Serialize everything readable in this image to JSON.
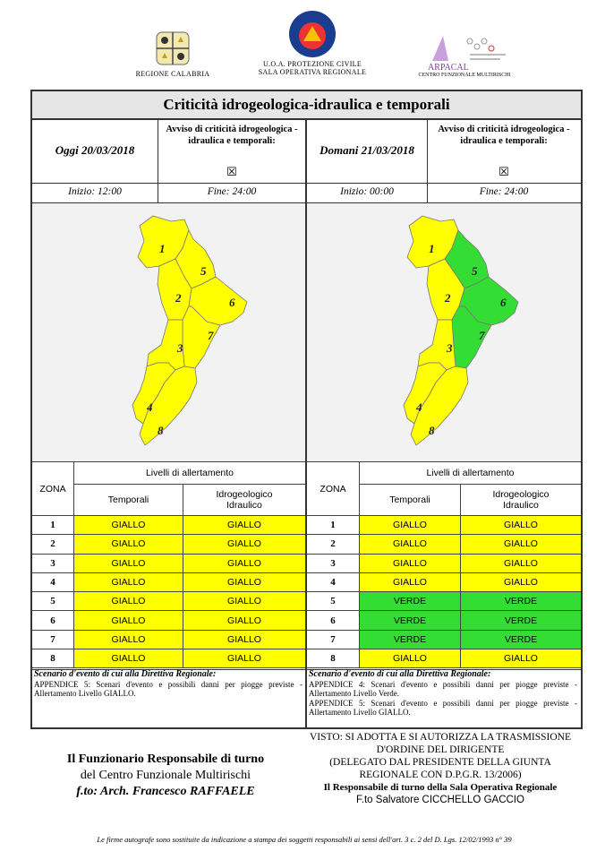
{
  "header": {
    "logos": [
      {
        "caption": "REGIONE CALABRIA",
        "icon": "regione-calabria-crest-icon"
      },
      {
        "caption_line1": "U.O.A. PROTEZIONE CIVILE",
        "caption_line2": "SALA OPERATIVA REGIONALE",
        "icon": "protezione-civile-icon"
      },
      {
        "caption": "ARPACAL",
        "subcaption": "CENTRO FUNZIONALE MULTIRISCHI",
        "icon": "arpacal-icon"
      }
    ]
  },
  "title": "Criticità idrogeologica-idraulica e temporali",
  "days": [
    {
      "date": "Oggi 20/03/2018",
      "avviso": "Avviso di criticità idrogeologica - idraulica e temporali:",
      "checkbox": "☒",
      "inizio": "Inizio: 12:00",
      "fine": "Fine: 24:00",
      "zone_colors": {
        "1": "#ffff00",
        "2": "#ffff00",
        "3": "#ffff00",
        "4": "#ffff00",
        "5": "#ffff00",
        "6": "#ffff00",
        "7": "#ffff00",
        "8": "#ffff00"
      },
      "table": {
        "zona_header": "ZONA",
        "livelli_header": "Livelli di allertamento",
        "col1": "Temporali",
        "col2": "Idrogeologico Idraulico",
        "rows": [
          {
            "zona": "1",
            "temporali": "GIALLO",
            "idro": "GIALLO"
          },
          {
            "zona": "2",
            "temporali": "GIALLO",
            "idro": "GIALLO"
          },
          {
            "zona": "3",
            "temporali": "GIALLO",
            "idro": "GIALLO"
          },
          {
            "zona": "4",
            "temporali": "GIALLO",
            "idro": "GIALLO"
          },
          {
            "zona": "5",
            "temporali": "GIALLO",
            "idro": "GIALLO"
          },
          {
            "zona": "6",
            "temporali": "GIALLO",
            "idro": "GIALLO"
          },
          {
            "zona": "7",
            "temporali": "GIALLO",
            "idro": "GIALLO"
          },
          {
            "zona": "8",
            "temporali": "GIALLO",
            "idro": "GIALLO"
          }
        ]
      },
      "scenario_title": "Scenario d'evento di cui alla Direttiva Regionale:",
      "scenario_lines": [
        "APPENDICE 5: Scenari d'evento e possibili danni per piogge previste - Allertamento Livello GIALLO."
      ]
    },
    {
      "date": "Domani 21/03/2018",
      "avviso": "Avviso di criticità idrogeologica - idraulica e temporali:",
      "checkbox": "☒",
      "inizio": "Inizio: 00:00",
      "fine": "Fine: 24:00",
      "zone_colors": {
        "1": "#ffff00",
        "2": "#ffff00",
        "3": "#ffff00",
        "4": "#ffff00",
        "5": "#33dd33",
        "6": "#33dd33",
        "7": "#33dd33",
        "8": "#ffff00"
      },
      "table": {
        "zona_header": "ZONA",
        "livelli_header": "Livelli di allertamento",
        "col1": "Temporali",
        "col2": "Idrogeologico Idraulico",
        "rows": [
          {
            "zona": "1",
            "temporali": "GIALLO",
            "idro": "GIALLO"
          },
          {
            "zona": "2",
            "temporali": "GIALLO",
            "idro": "GIALLO"
          },
          {
            "zona": "3",
            "temporali": "GIALLO",
            "idro": "GIALLO"
          },
          {
            "zona": "4",
            "temporali": "GIALLO",
            "idro": "GIALLO"
          },
          {
            "zona": "5",
            "temporali": "VERDE",
            "idro": "VERDE"
          },
          {
            "zona": "6",
            "temporali": "VERDE",
            "idro": "VERDE"
          },
          {
            "zona": "7",
            "temporali": "VERDE",
            "idro": "VERDE"
          },
          {
            "zona": "8",
            "temporali": "GIALLO",
            "idro": "GIALLO"
          }
        ]
      },
      "scenario_title": "Scenario d'evento di cui alla Direttiva Regionale:",
      "scenario_lines": [
        "APPENDICE 4: Scenari d'evento e possibili danni per piogge previste - Allertamento Livello Verde.",
        "APPENDICE 5: Scenari d'evento e possibili danni per piogge previste - Allertamento Livello GIALLO."
      ]
    }
  ],
  "footer": {
    "left": {
      "line1": "Il Funzionario Responsabile di turno",
      "line2": "del Centro Funzionale Multirischi",
      "line3": "f.to: Arch. Francesco RAFFAELE"
    },
    "right": {
      "line1": "VISTO: SI ADOTTA E SI AUTORIZZA LA TRASMISSIONE",
      "line2": "D'ORDINE DEL DIRIGENTE",
      "line3": "(DELEGATO DAL PRESIDENTE DELLA GIUNTA",
      "line4": "REGIONALE CON D.P.G.R. 13/2006)",
      "line5": "Il Responsabile di turno della Sala Operativa Regionale",
      "line6": "F.to Salvatore CICCHELLO GACCIO"
    },
    "note": "Le firme autografe sono sostituite da indicazione a stampa dei soggetti responsabili ai sensi dell'art. 3 c. 2 del D. Lgs. 12/02/1993 n° 39"
  },
  "colors": {
    "giallo": "#ffff00",
    "verde": "#33dd33"
  }
}
